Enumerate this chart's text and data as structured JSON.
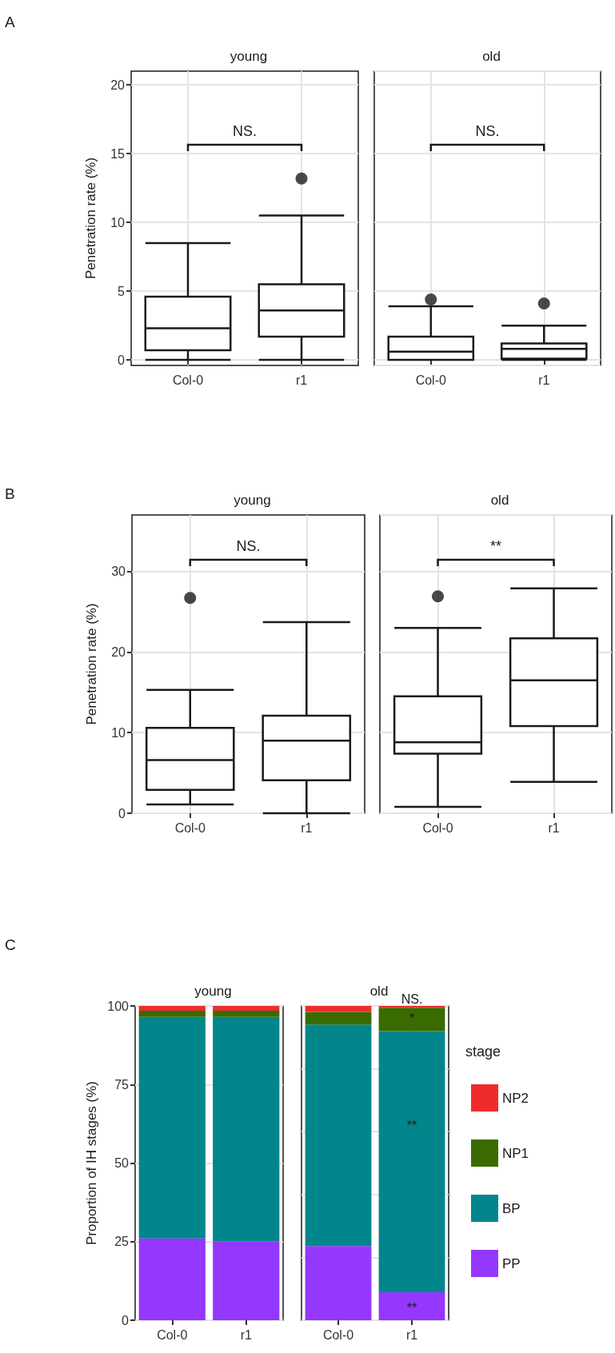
{
  "chart_data": [
    {
      "type": "box",
      "title": "young",
      "ylabel": "Penetration rate (%)",
      "categories": [
        "Col-0",
        "r1"
      ],
      "boxes": [
        {
          "low": 0,
          "q1": 0.7,
          "median": 2.3,
          "q3": 4.6,
          "high": 8.5
        },
        {
          "low": 0,
          "q1": 1.7,
          "median": 3.6,
          "q3": 5.5,
          "high": 10.5,
          "outliers": [
            13.2
          ]
        }
      ],
      "ylim": [
        -0.4,
        21
      ],
      "yticks": [
        0,
        5,
        10,
        15,
        20
      ],
      "grid": true,
      "marker": "circle",
      "annotations": [
        "A",
        "NS."
      ]
    },
    {
      "type": "box",
      "title": "old",
      "categories": [
        "Col-0",
        "r1"
      ],
      "boxes": [
        {
          "low": 0,
          "q1": 0,
          "median": 0.6,
          "q3": 1.7,
          "high": 3.9,
          "outliers": [
            4.4
          ]
        },
        {
          "low": 0,
          "q1": 0.1,
          "median": 0.8,
          "q3": 1.2,
          "high": 2.5,
          "outliers": [
            4.1
          ]
        }
      ],
      "ylim": [
        -0.4,
        21
      ],
      "tick_labels": "x",
      "grid": true,
      "marker": "circle",
      "annotations": [
        "NS."
      ]
    },
    {
      "type": "box",
      "title": "young",
      "ylabel": "Penetration rate (%)",
      "categories": [
        "Col-0",
        "r1"
      ],
      "boxes": [
        {
          "low": 1.1,
          "q1": 2.9,
          "median": 6.6,
          "q3": 10.6,
          "high": 15.3,
          "outliers": [
            26.7
          ]
        },
        {
          "low": 0,
          "q1": 4.1,
          "median": 9.0,
          "q3": 12.1,
          "high": 23.7
        }
      ],
      "ylim": [
        0,
        37
      ],
      "yticks": [
        0,
        10,
        20,
        30
      ],
      "grid": true,
      "marker": "circle",
      "annotations": [
        "B",
        "NS."
      ]
    },
    {
      "type": "box",
      "title": "old",
      "categories": [
        "Col-0",
        "r1"
      ],
      "boxes": [
        {
          "low": 0.8,
          "q1": 7.4,
          "median": 8.8,
          "q3": 14.5,
          "high": 23.0,
          "outliers": [
            26.9
          ]
        },
        {
          "low": 3.9,
          "q1": 10.8,
          "median": 16.5,
          "q3": 21.7,
          "high": 27.9
        }
      ],
      "ylim": [
        0,
        37
      ],
      "tick_labels": "x",
      "grid": true,
      "marker": "circle",
      "annotations": [
        "**"
      ]
    },
    {
      "type": "bar",
      "title": "young",
      "ylabel": "Proportion of IH stages (%)",
      "categories": [
        "Col-0",
        "r1"
      ],
      "stacked": true,
      "ylim": [
        0,
        100
      ],
      "yticks": [
        0,
        25,
        50,
        75,
        100
      ],
      "grid": true,
      "annotations": [
        "C"
      ],
      "series": [
        {
          "color": "#9437ff",
          "values": [
            26,
            25
          ]
        },
        {
          "color": "#00868b",
          "values": [
            70.5,
            71.5
          ]
        },
        {
          "color": "#3a6b00",
          "values": [
            2,
            2
          ]
        },
        {
          "color": "#ee2c2c",
          "values": [
            1.5,
            1.5
          ]
        }
      ]
    },
    {
      "type": "bar",
      "title": "old",
      "categories": [
        "Col-0",
        "r1"
      ],
      "stacked": true,
      "ylim": [
        0,
        100
      ],
      "tick_labels": "x",
      "grid": true,
      "legend": "right",
      "legend_title": "stage",
      "annotations": [
        "NS.",
        "*",
        "**",
        "**"
      ],
      "series": [
        {
          "name": "PP",
          "color": "#9437ff",
          "values": [
            23.6,
            8.9
          ]
        },
        {
          "name": "BP",
          "color": "#00868b",
          "values": [
            70.5,
            83.1
          ]
        },
        {
          "name": "NP1",
          "color": "#3a6b00",
          "values": [
            4,
            7.4
          ]
        },
        {
          "name": "NP2",
          "color": "#ee2c2c",
          "values": [
            1.9,
            0.6
          ]
        }
      ]
    }
  ]
}
